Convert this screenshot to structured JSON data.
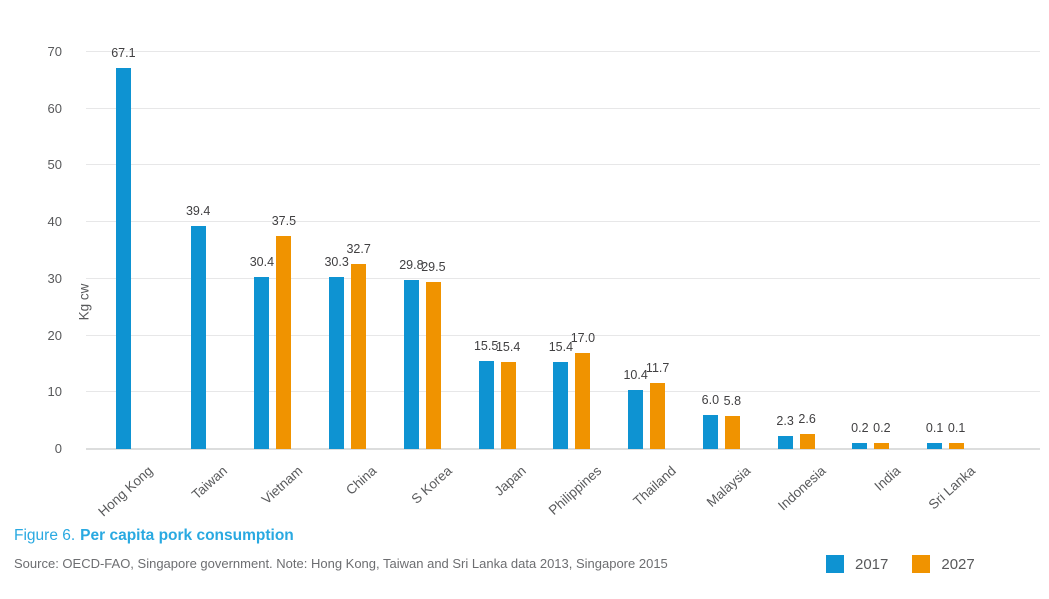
{
  "figure": {
    "caption_prefix": "Figure 6.",
    "caption_title": "Per capita pork consumption",
    "source": "Source: OECD-FAO, Singapore government. Note: Hong Kong, Taiwan and Sri Lanka data 2013, Singapore 2015"
  },
  "colors": {
    "bar_2017_blue": "#0e93d2",
    "bar_2027_orange": "#f09300",
    "caption_blue": "#29a9e1",
    "axis_text_gray": "#58595b",
    "value_label_gray": "#414042",
    "source_text_gray": "#6d6e71",
    "gridline_gray": "#e7e7e8"
  },
  "chart_data": {
    "type": "bar",
    "title": "Per capita pork consumption",
    "xlabel": "",
    "ylabel": "Kg cw",
    "ylim": [
      0,
      70
    ],
    "yticks": [
      0,
      10,
      20,
      30,
      40,
      50,
      60,
      70
    ],
    "grid": true,
    "legend_position": "bottom-right",
    "categories": [
      "Hong Kong",
      "Taiwan",
      "Vietnam",
      "China",
      "S Korea",
      "Japan",
      "Philippines",
      "Thailand",
      "Malaysia",
      "Indonesia",
      "India",
      "Sri Lanka"
    ],
    "series": [
      {
        "name": "2017",
        "color": "#0e93d2",
        "values": [
          67.1,
          39.4,
          30.4,
          30.3,
          29.8,
          15.5,
          15.4,
          10.4,
          6.0,
          2.3,
          0.2,
          0.1
        ]
      },
      {
        "name": "2027",
        "color": "#f09300",
        "values": [
          null,
          null,
          37.5,
          32.7,
          29.5,
          15.4,
          17.0,
          11.7,
          5.8,
          2.6,
          0.2,
          0.1
        ]
      }
    ]
  }
}
